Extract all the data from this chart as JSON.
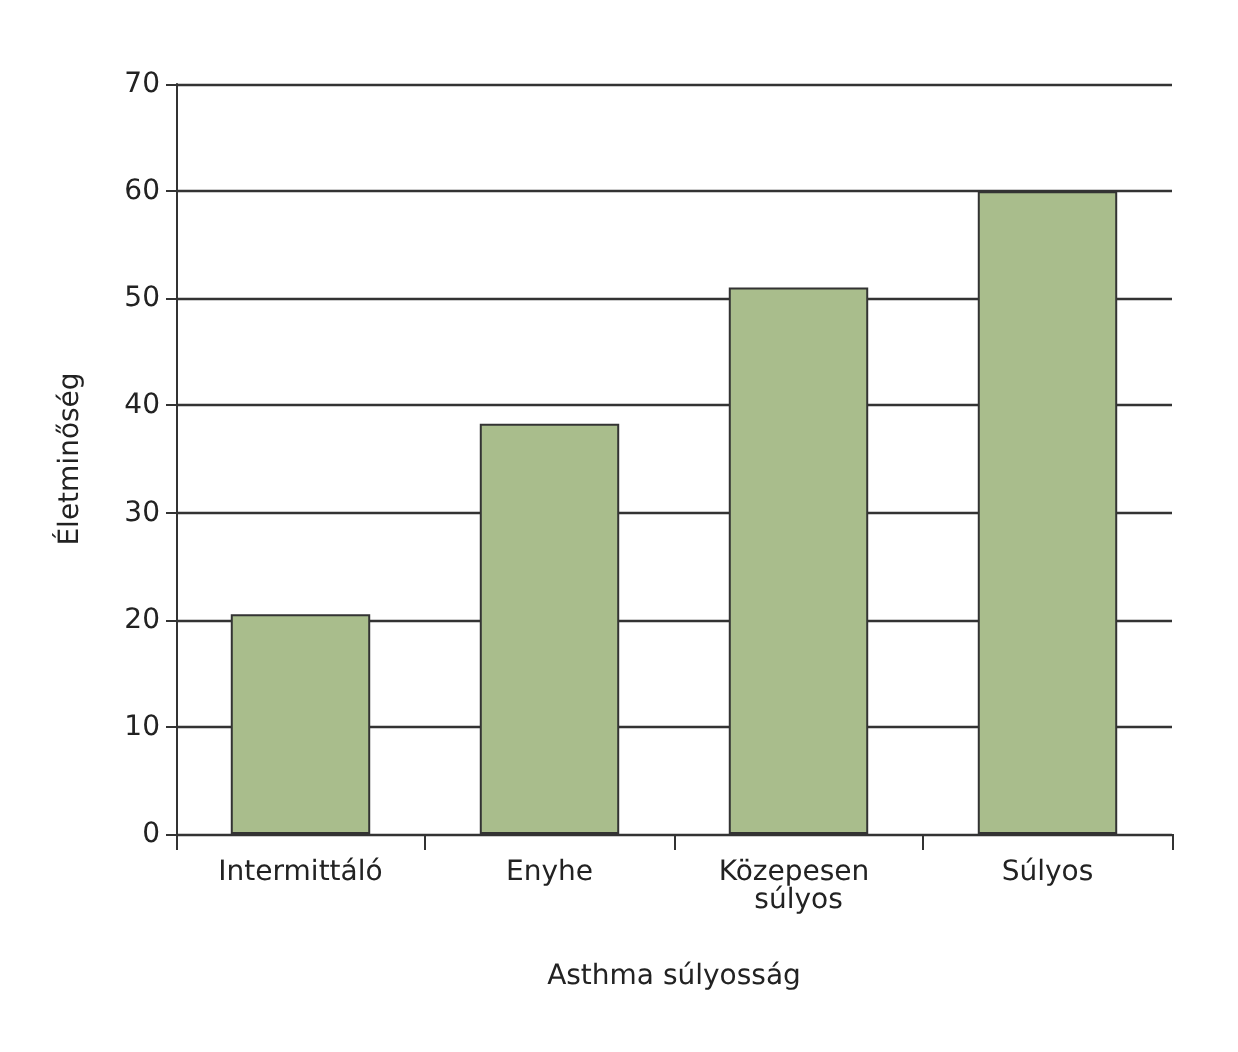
{
  "chart_data": {
    "type": "bar",
    "xlabel": "Asthma súlyosság",
    "ylabel": "Életminőség",
    "categories": [
      "Intermittáló",
      "Enyhe",
      "Közepesen súlyos",
      "Súlyos"
    ],
    "values": [
      20.5,
      38.3,
      51,
      60
    ],
    "color": "#a9bd8c",
    "ylim": [
      0,
      70
    ],
    "yticks": [
      0,
      10,
      20,
      30,
      40,
      50,
      60,
      70
    ],
    "grid": "y"
  }
}
